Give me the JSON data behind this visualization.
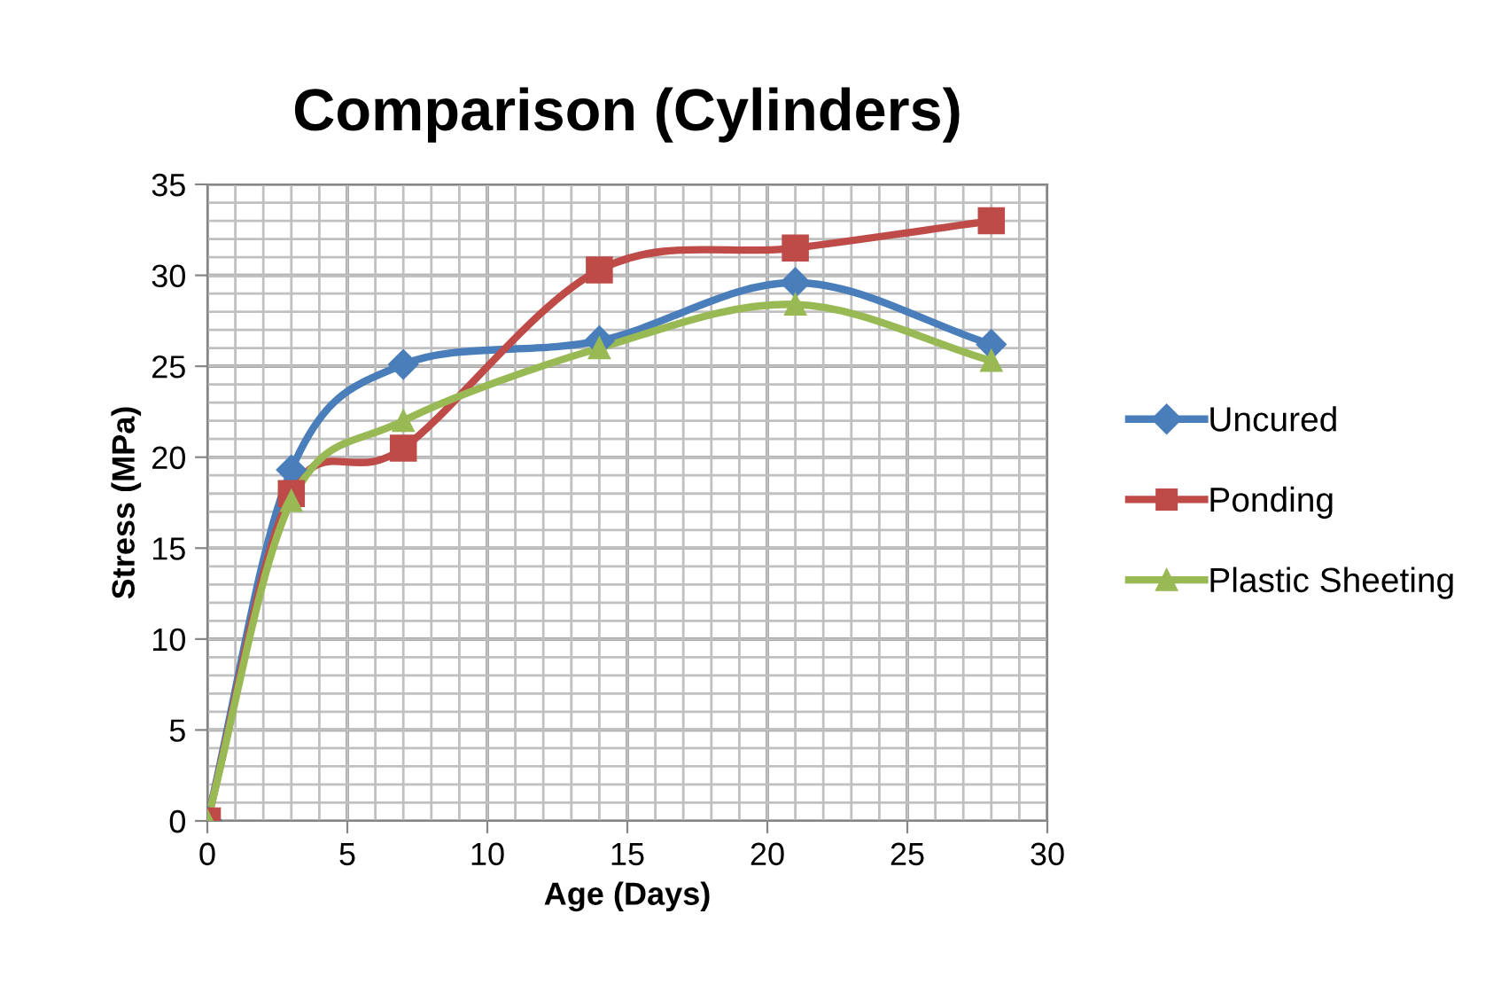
{
  "chart_data": {
    "type": "line",
    "title": "Comparison (Cylinders)",
    "xlabel": "Age (Days)",
    "ylabel": "Stress (MPa)",
    "x": [
      0,
      3,
      7,
      14,
      21,
      28
    ],
    "series": [
      {
        "name": "Uncured",
        "color": "#4a7ebb",
        "marker": "diamond",
        "values": [
          0,
          19.3,
          25.1,
          26.4,
          29.6,
          26.2
        ]
      },
      {
        "name": "Ponding",
        "color": "#be4b48",
        "marker": "square",
        "values": [
          0,
          18.0,
          20.5,
          30.3,
          31.5,
          33.0
        ]
      },
      {
        "name": "Plastic Sheeting",
        "color": "#98b954",
        "marker": "triangle",
        "values": [
          0,
          17.6,
          22.0,
          26.0,
          28.4,
          25.3
        ]
      }
    ],
    "xlim": [
      0,
      30
    ],
    "xticks": [
      0,
      5,
      10,
      15,
      20,
      25,
      30
    ],
    "ylim": [
      0,
      35
    ],
    "yticks": [
      0,
      5,
      10,
      15,
      20,
      25,
      30,
      35
    ],
    "grid": true,
    "legend": "right",
    "line_style": "solid"
  }
}
